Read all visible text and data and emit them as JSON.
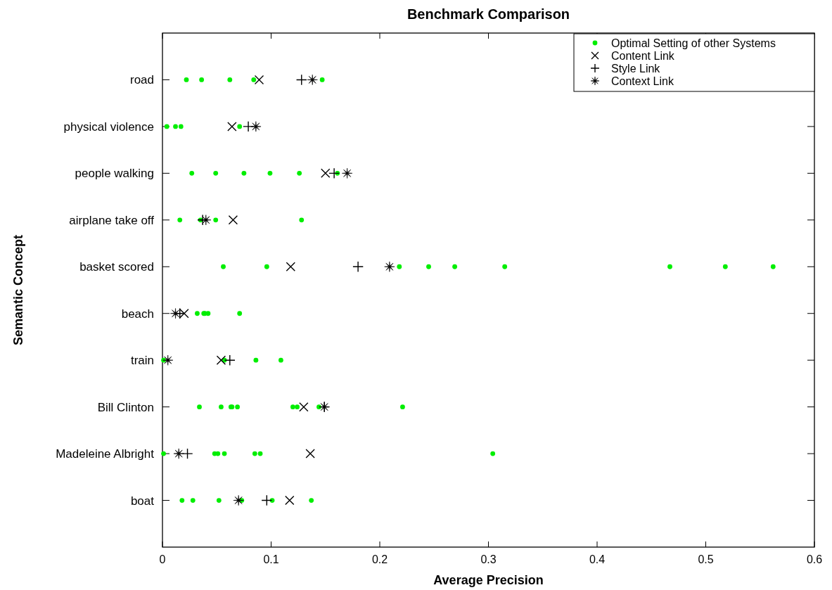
{
  "chart_data": {
    "type": "scatter",
    "orientation": "horizontal",
    "title": "Benchmark Comparison",
    "xlabel": "Average Precision",
    "ylabel": "Semantic Concept",
    "categories": [
      "road",
      "physical violence",
      "people walking",
      "airplane take off",
      "basket scored",
      "beach",
      "train",
      "Bill Clinton",
      "Madeleine Albright",
      "boat"
    ],
    "xlim": [
      0,
      0.6
    ],
    "xticks": [
      0,
      0.1,
      0.2,
      0.3,
      0.4,
      0.5,
      0.6
    ],
    "grid": false,
    "legend": "top right",
    "series": [
      {
        "name": "Optimal Setting of other Systems",
        "color": "#00ee00",
        "marker": "circle",
        "x": [
          "road",
          "road",
          "road",
          "road",
          "road",
          "physical violence",
          "physical violence",
          "physical violence",
          "physical violence",
          "people walking",
          "people walking",
          "people walking",
          "people walking",
          "people walking",
          "people walking",
          "airplane take off",
          "airplane take off",
          "airplane take off",
          "airplane take off",
          "basket scored",
          "basket scored",
          "basket scored",
          "basket scored",
          "basket scored",
          "basket scored",
          "basket scored",
          "basket scored",
          "basket scored",
          "beach",
          "beach",
          "beach",
          "beach",
          "beach",
          "train",
          "train",
          "train",
          "train",
          "Bill Clinton",
          "Bill Clinton",
          "Bill Clinton",
          "Bill Clinton",
          "Bill Clinton",
          "Bill Clinton",
          "Bill Clinton",
          "Bill Clinton",
          "Bill Clinton",
          "Madeleine Albright",
          "Madeleine Albright",
          "Madeleine Albright",
          "Madeleine Albright",
          "Madeleine Albright",
          "Madeleine Albright",
          "Madeleine Albright",
          "boat",
          "boat",
          "boat",
          "boat",
          "boat",
          "boat"
        ],
        "values": [
          0.022,
          0.036,
          0.062,
          0.084,
          0.147,
          0.004,
          0.012,
          0.017,
          0.071,
          0.027,
          0.049,
          0.075,
          0.099,
          0.126,
          0.161,
          0.016,
          0.035,
          0.049,
          0.128,
          0.056,
          0.096,
          0.218,
          0.245,
          0.269,
          0.315,
          0.467,
          0.518,
          0.562,
          0.032,
          0.038,
          0.039,
          0.042,
          0.071,
          0.001,
          0.057,
          0.086,
          0.109,
          0.034,
          0.054,
          0.063,
          0.064,
          0.069,
          0.12,
          0.124,
          0.144,
          0.221,
          0.001,
          0.048,
          0.051,
          0.057,
          0.085,
          0.09,
          0.304,
          0.018,
          0.028,
          0.052,
          0.073,
          0.101,
          0.137
        ]
      },
      {
        "name": "Content Link",
        "color": "#000000",
        "marker": "x",
        "x": [
          "road",
          "physical violence",
          "people walking",
          "airplane take off",
          "basket scored",
          "beach",
          "train",
          "Bill Clinton",
          "Madeleine Albright",
          "boat"
        ],
        "values": [
          0.089,
          0.064,
          0.15,
          0.065,
          0.118,
          0.02,
          0.054,
          0.13,
          0.136,
          0.117
        ]
      },
      {
        "name": "Style Link",
        "color": "#000000",
        "marker": "cross",
        "x": [
          "road",
          "physical violence",
          "people walking",
          "airplane take off",
          "basket scored",
          "beach",
          "train",
          "Bill Clinton",
          "Madeleine Albright",
          "boat"
        ],
        "values": [
          0.128,
          0.079,
          0.158,
          0.037,
          0.18,
          0.016,
          0.062,
          0.149,
          0.023,
          0.096
        ]
      },
      {
        "name": "Context Link",
        "color": "#000000",
        "marker": "star",
        "x": [
          "road",
          "physical violence",
          "people walking",
          "airplane take off",
          "basket scored",
          "beach",
          "train",
          "Bill Clinton",
          "Madeleine Albright",
          "boat"
        ],
        "values": [
          0.138,
          0.086,
          0.17,
          0.04,
          0.209,
          0.012,
          0.005,
          0.149,
          0.015,
          0.07
        ]
      }
    ]
  }
}
